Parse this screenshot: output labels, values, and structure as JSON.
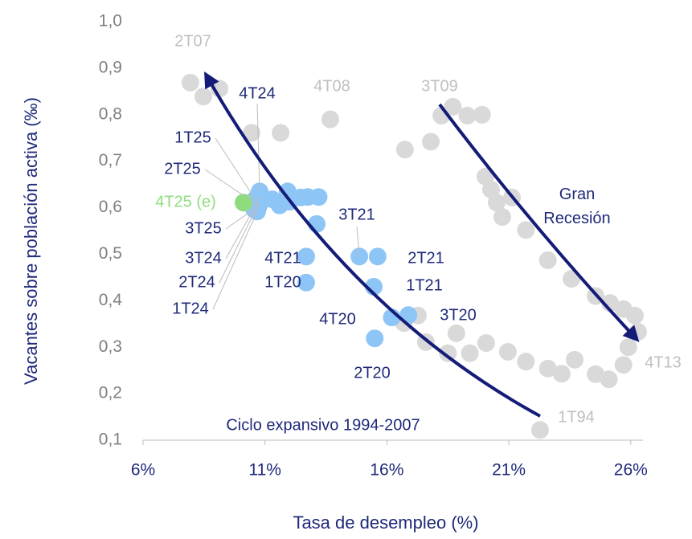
{
  "chart_data": {
    "type": "scatter",
    "xlabel": "Tasa de desempleo (%)",
    "ylabel": "Vacantes sobre población activa (‰)",
    "xlim": [
      6,
      26.5
    ],
    "ylim": [
      0.1,
      1.0
    ],
    "xticks": [
      {
        "value": 6,
        "label": "6%"
      },
      {
        "value": 11,
        "label": "11%"
      },
      {
        "value": 16,
        "label": "16%"
      },
      {
        "value": 21,
        "label": "21%"
      },
      {
        "value": 26,
        "label": "26%"
      }
    ],
    "yticks": [
      {
        "value": 0.1,
        "label": "0,1"
      },
      {
        "value": 0.2,
        "label": "0,2"
      },
      {
        "value": 0.3,
        "label": "0,3"
      },
      {
        "value": 0.4,
        "label": "0,4"
      },
      {
        "value": 0.5,
        "label": "0,5"
      },
      {
        "value": 0.6,
        "label": "0,6"
      },
      {
        "value": 0.7,
        "label": "0,7"
      },
      {
        "value": 0.8,
        "label": "0,8"
      },
      {
        "value": 0.9,
        "label": "0,9"
      },
      {
        "value": 1.0,
        "label": "1,0"
      }
    ],
    "annotations": [
      "Gran Recesión",
      "Ciclo expansivo 1994-2007"
    ],
    "series": [
      {
        "color": "#d9d9d9",
        "label_color": "#bfbfbf",
        "labels": [
          "2T07",
          "4T08",
          "3T09",
          "4T13",
          "1T94",
          null,
          null,
          null,
          null,
          null,
          null,
          null,
          null,
          null,
          null,
          null,
          null,
          null,
          null,
          null,
          null,
          null,
          null,
          null,
          null,
          null,
          null,
          null,
          null,
          null,
          null,
          null,
          null,
          null,
          null,
          null,
          null,
          null,
          null,
          null,
          null,
          null
        ],
        "x": [
          7.94,
          13.68,
          18.23,
          26.3,
          22.28,
          8.47,
          9.13,
          10.45,
          11.64,
          16.74,
          17.8,
          18.7,
          19.3,
          19.9,
          20.04,
          20.27,
          20.5,
          20.73,
          21.13,
          21.7,
          22.6,
          23.57,
          24.56,
          25.15,
          25.7,
          26.17,
          25.9,
          25.7,
          25.1,
          24.56,
          23.7,
          23.17,
          22.6,
          21.7,
          20.96,
          20.07,
          19.4,
          18.85,
          18.5,
          17.6,
          17.27,
          16.7
        ],
        "values": [
          0.869,
          0.79,
          0.798,
          0.333,
          0.122,
          0.839,
          0.856,
          0.761,
          0.761,
          0.725,
          0.742,
          0.817,
          0.798,
          0.8,
          0.667,
          0.639,
          0.611,
          0.58,
          0.622,
          0.552,
          0.487,
          0.447,
          0.41,
          0.395,
          0.382,
          0.368,
          0.3,
          0.262,
          0.231,
          0.242,
          0.273,
          0.243,
          0.254,
          0.269,
          0.29,
          0.309,
          0.287,
          0.33,
          0.287,
          0.311,
          0.368,
          0.352
        ]
      },
      {
        "color": "#8ec5f7",
        "label_color": "#1f2a7a",
        "labels": [
          "1T24",
          "2T24",
          "3T24",
          "4T24",
          "1T25",
          "2T25",
          "3T25",
          "1T20",
          "2T20",
          "3T20",
          "4T20",
          "1T21",
          "2T21",
          "3T21",
          "4T21",
          null,
          null,
          null,
          null,
          null,
          null,
          null,
          null
        ],
        "x": [
          10.68,
          10.75,
          10.81,
          10.78,
          10.6,
          10.75,
          10.55,
          12.69,
          15.5,
          16.88,
          16.2,
          15.46,
          15.62,
          14.87,
          12.69,
          11.3,
          11.93,
          12.0,
          12.46,
          12.76,
          13.2,
          13.12,
          11.6
        ],
        "values": [
          0.592,
          0.61,
          0.623,
          0.635,
          0.618,
          0.604,
          0.597,
          0.439,
          0.319,
          0.369,
          0.364,
          0.43,
          0.495,
          0.495,
          0.495,
          0.618,
          0.635,
          0.613,
          0.622,
          0.623,
          0.623,
          0.565,
          0.605
        ]
      },
      {
        "color": "#8fdc7f",
        "label_color": "#8fdc7f",
        "labels": [
          "4T25 (e)"
        ],
        "x": [
          10.12
        ],
        "values": [
          0.611
        ]
      }
    ]
  }
}
